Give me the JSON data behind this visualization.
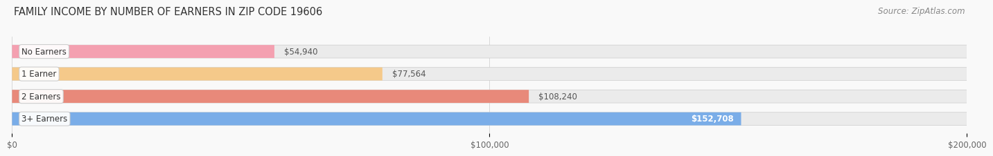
{
  "title": "FAMILY INCOME BY NUMBER OF EARNERS IN ZIP CODE 19606",
  "source": "Source: ZipAtlas.com",
  "categories": [
    "No Earners",
    "1 Earner",
    "2 Earners",
    "3+ Earners"
  ],
  "values": [
    54940,
    77564,
    108240,
    152708
  ],
  "bar_colors": [
    "#f4a0b0",
    "#f5c98a",
    "#e8897a",
    "#7aade8"
  ],
  "bar_bg_color": "#ebebeb",
  "value_labels": [
    "$54,940",
    "$77,564",
    "$108,240",
    "$152,708"
  ],
  "xlim": [
    0,
    200000
  ],
  "xticks": [
    0,
    100000,
    200000
  ],
  "xtick_labels": [
    "$0",
    "$100,000",
    "$200,000"
  ],
  "background_color": "#f9f9f9",
  "title_fontsize": 10.5,
  "source_fontsize": 8.5,
  "bar_label_fontsize": 8.5,
  "category_fontsize": 8.5,
  "bar_height": 0.58
}
